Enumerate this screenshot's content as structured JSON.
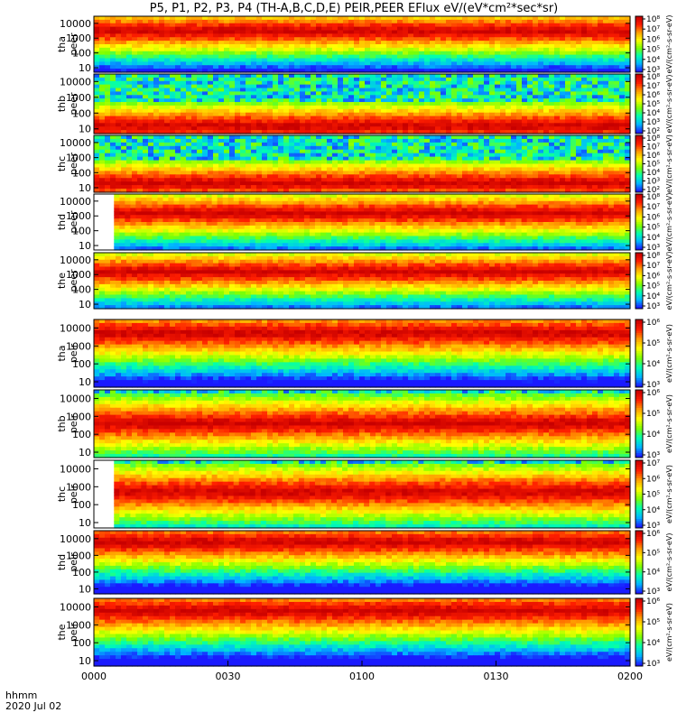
{
  "chart_data": {
    "type": "heatmap",
    "title": "P5, P1, P2, P3, P4 (TH-A,B,C,D,E) PEIR,PEER EFlux eV/(eV*cm²*sec*sr)",
    "x_ticks": [
      "0000",
      "0030",
      "0100",
      "0130",
      "0200"
    ],
    "x_range_minutes": [
      0,
      120
    ],
    "time_label_line1": "hhmm",
    "time_label_line2": "2020 Jul 02",
    "y_scale": "log",
    "y_ticks": [
      "10000",
      "1000",
      "100",
      "10"
    ],
    "y_tick_values": [
      10000,
      1000,
      100,
      10
    ],
    "y_range": [
      5,
      30000
    ],
    "colormap": [
      "#1a1aff",
      "#00b7ff",
      "#00ffb0",
      "#7dff00",
      "#ffff00",
      "#ffa000",
      "#ff1e00",
      "#c80000"
    ],
    "panels": [
      {
        "probe": "tha",
        "species": "peer",
        "colorbar_ticks": [
          "10⁸",
          "10⁷",
          "10⁶",
          "10⁵",
          "10⁴",
          "10³"
        ],
        "colorbar_label": "eV/(cm²-s-sr-eV)",
        "data_start_minute": 0,
        "peak_energy": 3000,
        "noise": false
      },
      {
        "probe": "thb",
        "species": "peer",
        "colorbar_ticks": [
          "10⁸",
          "10⁷",
          "10⁶",
          "10⁵",
          "10⁴",
          "10³",
          "10²"
        ],
        "colorbar_label": "eV/(cm²-s-sr-eV)",
        "data_start_minute": 0,
        "peak_energy": 15,
        "noise": true
      },
      {
        "probe": "thc",
        "species": "peer",
        "colorbar_ticks": [
          "10⁸",
          "10⁷",
          "10⁶",
          "10⁵",
          "10⁴",
          "10³",
          "10²"
        ],
        "colorbar_label": "eV/(cm²-s-sr-eV)",
        "data_start_minute": 0,
        "peak_energy": 20,
        "noise": true
      },
      {
        "probe": "thd",
        "species": "peer",
        "colorbar_ticks": [
          "10⁸",
          "10⁷",
          "10⁶",
          "10⁵",
          "10⁴",
          "10³"
        ],
        "colorbar_label": "eV/(cm²-s-sr-eV)",
        "data_start_minute": 4.5,
        "peak_energy": 1500,
        "noise": false
      },
      {
        "probe": "the",
        "species": "peer",
        "colorbar_ticks": [
          "10⁸",
          "10⁷",
          "10⁶",
          "10⁵",
          "10⁴",
          "10³"
        ],
        "colorbar_label": "eV/(cm²-s-sr-eV)",
        "data_start_minute": 0,
        "peak_energy": 1500,
        "noise": false
      },
      {
        "probe": "tha",
        "species": "peir",
        "colorbar_ticks": [
          "10⁶",
          "10⁵",
          "10⁴",
          "10³"
        ],
        "colorbar_label": "eV/(cm²-s-sr-eV)",
        "data_start_minute": 0,
        "peak_energy": 5000,
        "noise": false
      },
      {
        "probe": "thb",
        "species": "peir",
        "colorbar_ticks": [
          "10⁶",
          "10⁵",
          "10⁴",
          "10³"
        ],
        "colorbar_label": "eV/(cm²-s-sr-eV)",
        "data_start_minute": 0,
        "peak_energy": 400,
        "noise": true
      },
      {
        "probe": "thc",
        "species": "peir",
        "colorbar_ticks": [
          "10⁷",
          "10⁶",
          "10⁵",
          "10⁴",
          "10³"
        ],
        "colorbar_label": "eV/(cm²-s-sr-eV)",
        "data_start_minute": 4.5,
        "peak_energy": 500,
        "noise": true
      },
      {
        "probe": "thd",
        "species": "peir",
        "colorbar_ticks": [
          "10⁶",
          "10⁵",
          "10⁴",
          "10³"
        ],
        "colorbar_label": "eV/(cm²-s-sr-eV)",
        "data_start_minute": 0,
        "peak_energy": 6000,
        "noise": false
      },
      {
        "probe": "the",
        "species": "peir",
        "colorbar_ticks": [
          "10⁶",
          "10⁵",
          "10⁴",
          "10³"
        ],
        "colorbar_label": "eV/(cm²-s-sr-eV)",
        "data_start_minute": 0,
        "peak_energy": 6000,
        "noise": false
      }
    ]
  }
}
